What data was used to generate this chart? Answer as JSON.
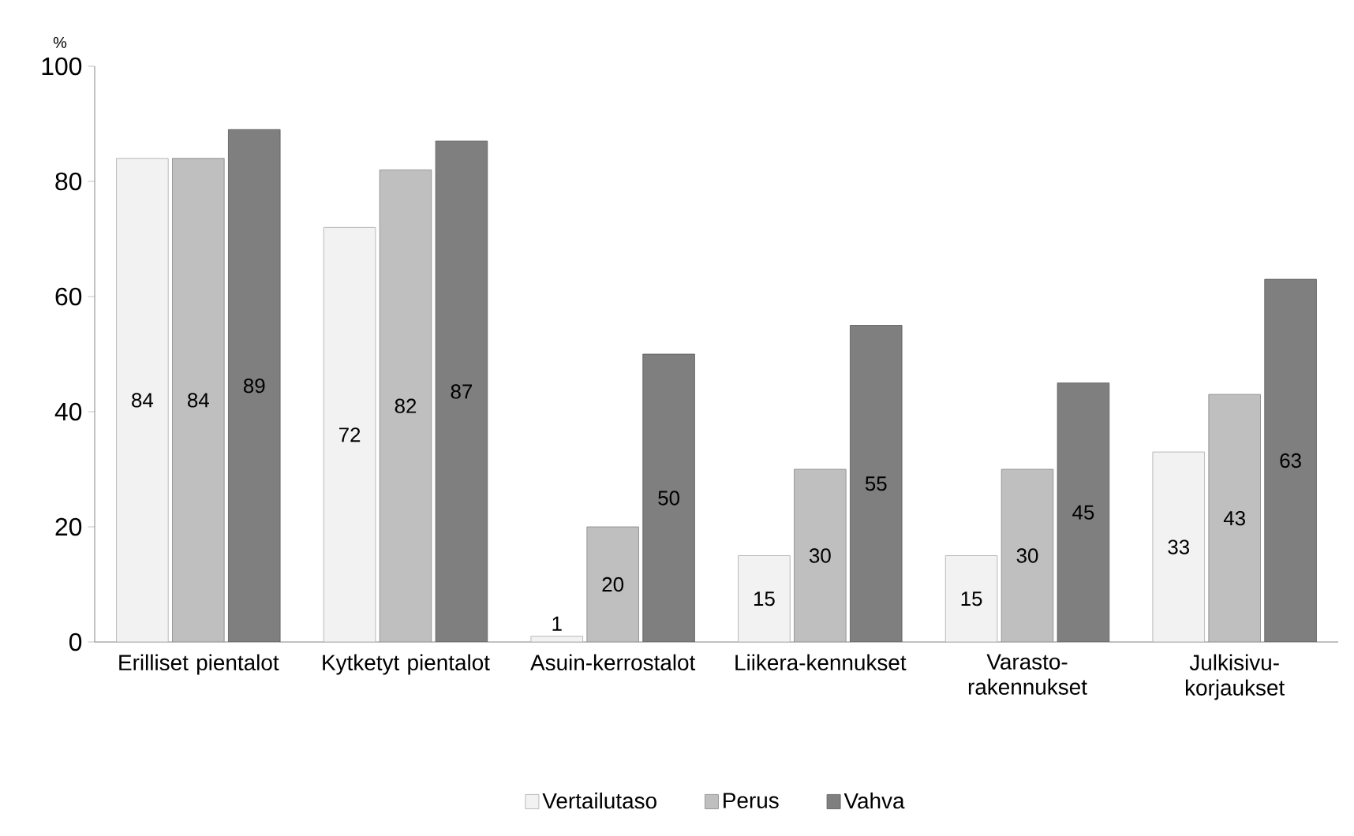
{
  "chart_data": {
    "type": "bar",
    "ylabel": "%",
    "categories": [
      "Erilliset pientalot",
      "Kytketyt pientalot",
      "Asuin-kerrostalot",
      "Liikera-kennukset",
      "Varasto-rakennukset",
      "Julkisivu-korjaukset"
    ],
    "series": [
      {
        "name": "Vertailutaso",
        "color": "#f2f2f2",
        "values": [
          84,
          72,
          1,
          15,
          15,
          33
        ]
      },
      {
        "name": "Perus",
        "color": "#bfbfbf",
        "values": [
          84,
          82,
          20,
          30,
          30,
          43
        ]
      },
      {
        "name": "Vahva",
        "color": "#7f7f7f",
        "values": [
          89,
          87,
          50,
          55,
          45,
          63
        ]
      }
    ],
    "ylim": [
      0,
      100
    ],
    "yticks": [
      0,
      20,
      40,
      60,
      80,
      100
    ],
    "data_labels": true,
    "legend": "bottom",
    "grid": false
  }
}
